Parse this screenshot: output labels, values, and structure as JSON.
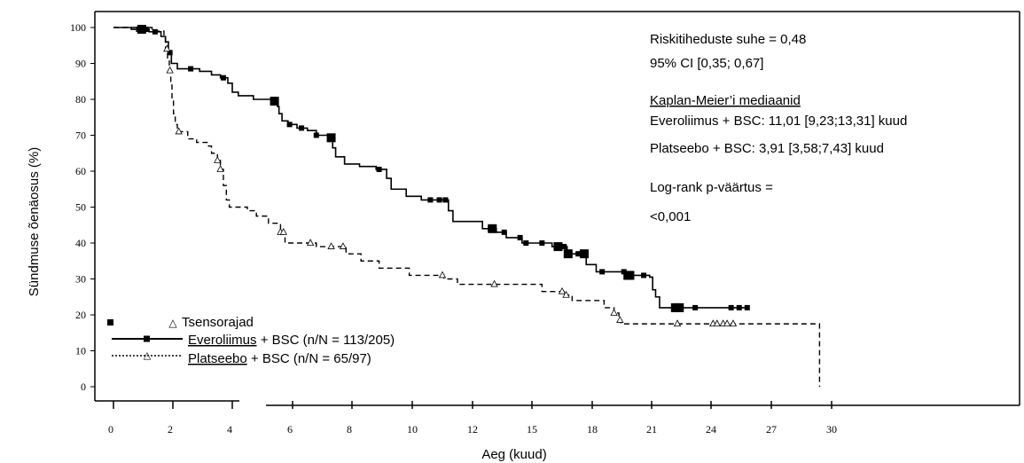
{
  "chart_data": {
    "type": "line",
    "title": "",
    "xlabel": "Aeg (kuud)",
    "ylabel": "Sündmuse  õenäosus  (%)",
    "xlim": [
      0,
      30
    ],
    "ylim": [
      0,
      100
    ],
    "x_ticks": [
      {
        "value": 0,
        "label": "0"
      },
      {
        "value": 2,
        "label": "2"
      },
      {
        "value": 4,
        "label": "4"
      },
      {
        "value": 6,
        "label": "6"
      },
      {
        "value": 8,
        "label": "8"
      },
      {
        "value": 10,
        "label": "10"
      },
      {
        "value": 12,
        "label": "12"
      },
      {
        "value": 15,
        "label": "15"
      },
      {
        "value": 18,
        "label": "18"
      },
      {
        "value": 21,
        "label": "21"
      },
      {
        "value": 24,
        "label": "24"
      },
      {
        "value": 27,
        "label": "27"
      },
      {
        "value": 30,
        "label": "30"
      }
    ],
    "y_ticks": [
      "0",
      "10",
      "20",
      "30",
      "40",
      "50",
      "60",
      "70",
      "80",
      "90",
      "100"
    ],
    "grid": false,
    "legend_position": "bottom-left",
    "legend": {
      "censor_label": "Tsensorajad",
      "entries": [
        {
          "name_word": "Everoliimus",
          "name_rest": " + BSC (n/N = 113/205)",
          "style": "solid",
          "marker": "square"
        },
        {
          "name_word": "Platseebo",
          "name_rest": " + BSC (n/N = 65/97)",
          "style": "dashed",
          "marker": "triangle"
        }
      ]
    },
    "annotations": [
      "Riskitiheduste suhe = 0,48",
      "95% CI [0,35; 0,67]",
      "Kaplan-Meier’i mediaanid",
      "Everoliimus + BSC:  11,01 [9,23;13,31] kuud",
      "Platseebo + BSC:  3,91 [3,58;7,43] kuud",
      "Log-rank p-väärtus =",
      "<0,001"
    ],
    "series": [
      {
        "name": "Everoliimus + BSC (n/N = 113/205)",
        "style": "solid",
        "steps": [
          [
            0,
            100
          ],
          [
            0.6,
            99.5
          ],
          [
            1.2,
            98.8
          ],
          [
            1.6,
            97.5
          ],
          [
            1.75,
            96
          ],
          [
            1.85,
            93
          ],
          [
            1.95,
            90
          ],
          [
            2.15,
            88.5
          ],
          [
            2.9,
            87.8
          ],
          [
            3.3,
            86.8
          ],
          [
            3.6,
            86
          ],
          [
            3.85,
            84.5
          ],
          [
            4.0,
            82
          ],
          [
            4.2,
            81
          ],
          [
            4.7,
            80
          ],
          [
            5.3,
            79.5
          ],
          [
            5.5,
            78
          ],
          [
            5.55,
            76
          ],
          [
            5.65,
            74
          ],
          [
            5.85,
            73
          ],
          [
            6.15,
            72
          ],
          [
            6.5,
            71.3
          ],
          [
            6.8,
            70
          ],
          [
            7.25,
            69.3
          ],
          [
            7.35,
            66.5
          ],
          [
            7.45,
            64
          ],
          [
            7.75,
            62
          ],
          [
            8.25,
            61.3
          ],
          [
            8.8,
            60.5
          ],
          [
            9.15,
            58
          ],
          [
            9.3,
            55
          ],
          [
            9.8,
            53
          ],
          [
            10.3,
            52
          ],
          [
            11.2,
            49
          ],
          [
            11.35,
            46
          ],
          [
            12.5,
            44
          ],
          [
            13.2,
            43
          ],
          [
            13.7,
            41.5
          ],
          [
            14.5,
            40
          ],
          [
            16.0,
            39
          ],
          [
            16.75,
            37
          ],
          [
            17.7,
            34
          ],
          [
            18.2,
            32
          ],
          [
            19.8,
            31
          ],
          [
            20.9,
            30.5
          ],
          [
            21.05,
            27
          ],
          [
            21.2,
            25
          ],
          [
            21.4,
            22
          ],
          [
            25.5,
            22
          ]
        ],
        "end": 25.9,
        "censors": [
          0.85,
          1.1,
          1.4,
          1.9,
          2.6,
          3.7,
          5.4,
          5.9,
          6.3,
          6.8,
          7.3,
          8.9,
          10.6,
          10.9,
          11.1,
          12.9,
          13.6,
          14.4,
          14.7,
          15.5,
          16.6,
          16.8,
          17.3,
          17.6,
          18.5,
          19.6,
          20.6,
          22.3,
          23.2,
          25.0,
          25.4,
          25.8
        ],
        "censor_big": [
          0.95,
          5.4,
          7.3,
          13.0,
          16.3,
          16.8,
          17.6,
          19.8,
          19.9,
          22.2,
          22.4
        ]
      },
      {
        "name": "Platseebo + BSC (n/N = 65/97)",
        "style": "dashed",
        "steps": [
          [
            0,
            100
          ],
          [
            1.3,
            99
          ],
          [
            1.7,
            97
          ],
          [
            1.75,
            94
          ],
          [
            1.82,
            91
          ],
          [
            1.88,
            88
          ],
          [
            1.93,
            84
          ],
          [
            1.97,
            80
          ],
          [
            2.02,
            76
          ],
          [
            2.08,
            73
          ],
          [
            2.15,
            71
          ],
          [
            2.5,
            69
          ],
          [
            2.8,
            68
          ],
          [
            3.2,
            67
          ],
          [
            3.3,
            65
          ],
          [
            3.5,
            63
          ],
          [
            3.6,
            60.5
          ],
          [
            3.7,
            56
          ],
          [
            3.8,
            52
          ],
          [
            3.9,
            50
          ],
          [
            4.5,
            49
          ],
          [
            4.8,
            47.5
          ],
          [
            5.2,
            45.5
          ],
          [
            5.6,
            43
          ],
          [
            5.75,
            40
          ],
          [
            6.8,
            39
          ],
          [
            7.8,
            37
          ],
          [
            8.3,
            35
          ],
          [
            8.9,
            33
          ],
          [
            9.9,
            31
          ],
          [
            11.05,
            30
          ],
          [
            11.5,
            28.5
          ],
          [
            15.5,
            26.5
          ],
          [
            16.6,
            25.5
          ],
          [
            17.0,
            24
          ],
          [
            18.6,
            22
          ],
          [
            19.1,
            20.5
          ],
          [
            19.35,
            18.5
          ],
          [
            19.45,
            17.5
          ],
          [
            29.4,
            17.5
          ],
          [
            29.4,
            0
          ]
        ],
        "end": 29.4,
        "censors": [
          1.8,
          1.9,
          2.2,
          3.5,
          3.6,
          5.6,
          5.7,
          6.6,
          7.3,
          7.7,
          11.0,
          13.1,
          16.5,
          16.7,
          19.1,
          19.4,
          22.3,
          24.1,
          24.3,
          24.6,
          24.8,
          25.1
        ]
      }
    ]
  }
}
